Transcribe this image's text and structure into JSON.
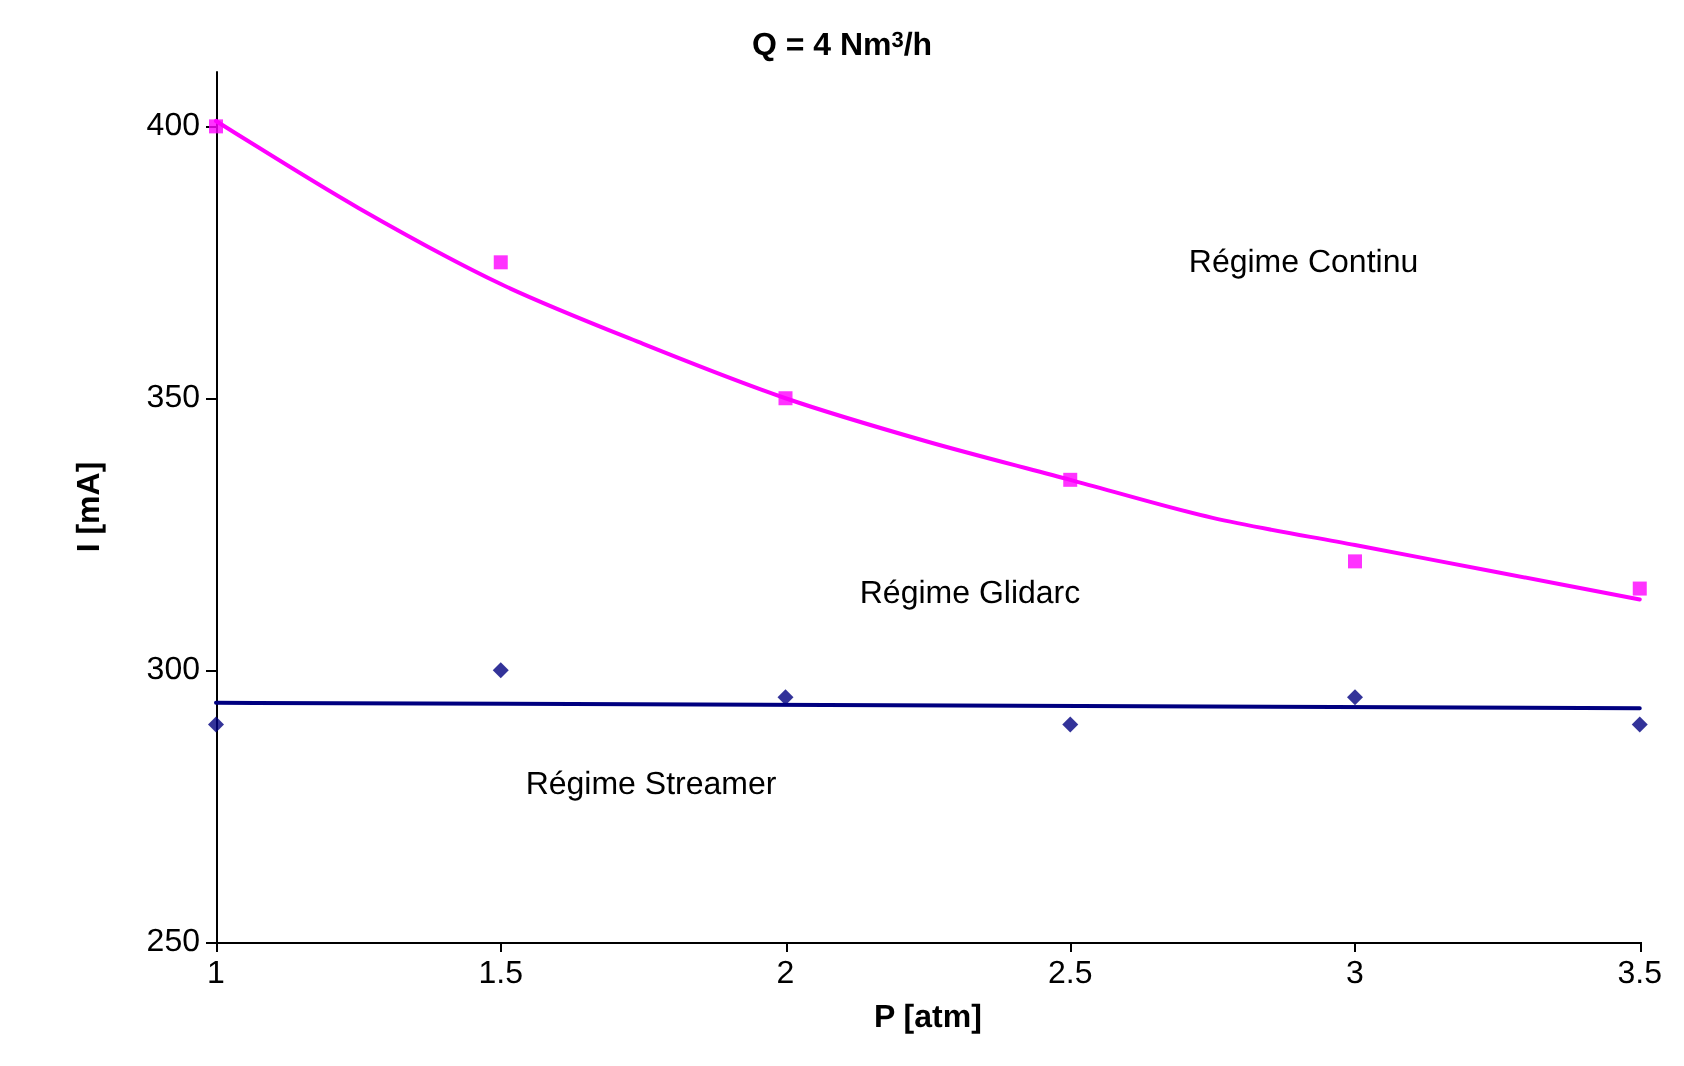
{
  "chart_data": {
    "type": "scatter",
    "title": "Q = 4 Nm$^{3}$/h",
    "xlabel": "P [atm]",
    "ylabel": "I [mA]",
    "annotations": [
      "Régime Continu",
      "Régime Glidarc",
      "Régime Streamer"
    ],
    "series": [
      {
        "marker": "square",
        "color": "#ff00ff",
        "x": [
          1,
          1.5,
          2,
          2.5,
          3,
          3.5
        ],
        "values": [
          400,
          375,
          350,
          335,
          320,
          315
        ]
      },
      {
        "marker": "diamond",
        "color": "#000080",
        "x": [
          1,
          1.5,
          2,
          2.5,
          3,
          3.5
        ],
        "values": [
          290,
          300,
          295,
          290,
          295,
          290
        ]
      },
      {
        "type": "line",
        "marker": "none",
        "color": "#ff00ff",
        "x": [
          1,
          1.25,
          1.5,
          1.75,
          2,
          2.25,
          2.5,
          2.75,
          3,
          3.25,
          3.5
        ],
        "values": [
          401,
          385,
          371,
          360,
          350,
          342,
          335,
          328,
          323,
          318,
          313
        ]
      },
      {
        "type": "line",
        "marker": "none",
        "color": "#000080",
        "x": [
          1,
          3.5
        ],
        "values": [
          294,
          293
        ]
      }
    ],
    "xlim": [
      1,
      3.5
    ],
    "xticks": [
      1,
      1.5,
      2,
      2.5,
      3,
      3.5
    ],
    "ylim": [
      250,
      410
    ],
    "yticks": [
      250,
      300,
      350,
      400
    ],
    "grid": false
  }
}
